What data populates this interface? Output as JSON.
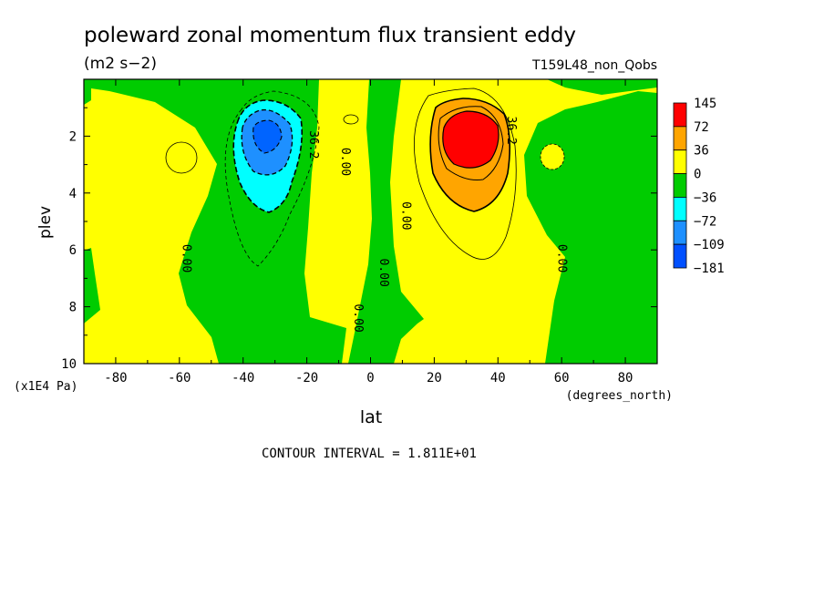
{
  "chart_data": {
    "type": "heatmap",
    "title": "poleward zonal momentum flux transient eddy",
    "units": "(m2 s−2)",
    "run_label": "T159L48_non_Qobs",
    "xlabel": "lat",
    "x_units": "(degrees_north)",
    "ylabel": "plev",
    "y_units": "(x1E4 Pa)",
    "xlim": [
      -90,
      90
    ],
    "ylim": [
      10,
      0
    ],
    "x_ticks": [
      "-80",
      "-60",
      "-40",
      "-20",
      "0",
      "20",
      "40",
      "60",
      "80"
    ],
    "x_tick_values": [
      -80,
      -60,
      -40,
      -20,
      0,
      20,
      40,
      60,
      80
    ],
    "y_ticks": [
      "2",
      "4",
      "6",
      "8",
      "10"
    ],
    "y_tick_values": [
      2,
      4,
      6,
      8,
      10
    ],
    "footer": "CONTOUR INTERVAL = 1.811E+01",
    "legend": [
      {
        "label": "145",
        "color": "#ff0000"
      },
      {
        "label": "72",
        "color": "#ffa500"
      },
      {
        "label": "36",
        "color": "#ffff00"
      },
      {
        "label": "0",
        "color": "#00cc00"
      },
      {
        "label": "−36",
        "color": "#00ffff"
      },
      {
        "label": "−72",
        "color": "#1e90ff"
      },
      {
        "label": "−109",
        "color": "#0050ff"
      },
      {
        "label": "−181",
        "color": ""
      }
    ],
    "contour_labels": [
      {
        "text": "0.00",
        "lat": -59,
        "plev": 6.3
      },
      {
        "text": "0.00",
        "lat": -9,
        "plev": 2.9
      },
      {
        "text": "0.00",
        "lat": -5,
        "plev": 8.4
      },
      {
        "text": "0.00",
        "lat": 3,
        "plev": 6.8
      },
      {
        "text": "0.00",
        "lat": 10,
        "plev": 4.8
      },
      {
        "text": "0.00",
        "lat": 59,
        "plev": 6.3
      },
      {
        "text": "36.2",
        "lat": -19,
        "plev": 2.3
      },
      {
        "text": "36.2",
        "lat": 43,
        "plev": 1.8
      }
    ],
    "extrema": {
      "max_lat": 31,
      "max_plev": 2.2,
      "min_lat": -33,
      "min_plev": 2.3
    },
    "grid": false
  }
}
